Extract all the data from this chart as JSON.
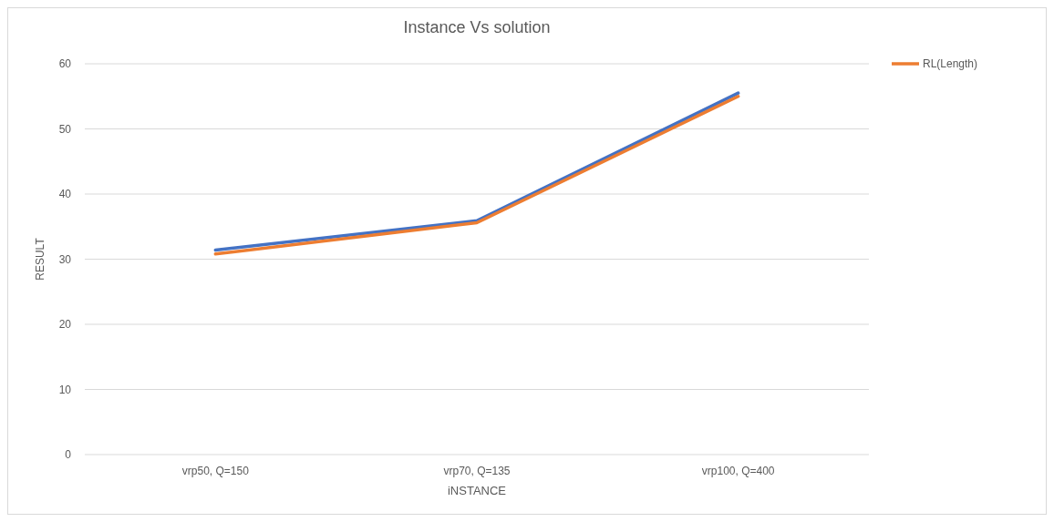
{
  "chart_data": {
    "type": "line",
    "title": "Instance Vs solution",
    "xlabel": "iNSTANCE",
    "ylabel": "RESULT",
    "categories": [
      "vrp50, Q=150",
      "vrp70, Q=135",
      "vrp100, Q=400"
    ],
    "series": [
      {
        "color": "#4472c4",
        "values": [
          31.4,
          35.9,
          55.5
        ]
      },
      {
        "name": "RL(Length)",
        "color": "#ed7d31",
        "values": [
          30.8,
          35.6,
          55.0
        ]
      }
    ],
    "ylim": [
      0,
      60
    ],
    "yticks": [
      0,
      10,
      20,
      30,
      40,
      50,
      60
    ],
    "grid": "y",
    "legend": "top right",
    "marker": "none",
    "line_style": "solid"
  }
}
